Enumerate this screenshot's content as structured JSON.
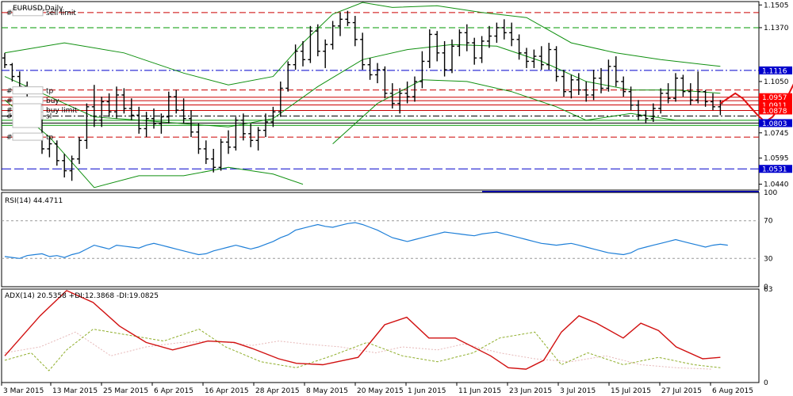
{
  "chart_data": [
    {
      "type": "candlestick",
      "title": "EURUSD,Daily",
      "ylim": [
        1.0405,
        1.1525
      ],
      "price_ticks": [
        "1.1505",
        "1.1370",
        "1.1120",
        "1.1050",
        "1.0745",
        "1.0595",
        "1.0440"
      ],
      "date_labels": [
        "3 Mar 2015",
        "13 Mar 2015",
        "25 Mar 2015",
        "6 Apr 2015",
        "16 Apr 2015",
        "28 Apr 2015",
        "8 May 2015",
        "20 May 2015",
        "1 Jun 2015",
        "11 Jun 2015",
        "23 Jun 2015",
        "3 Jul 2015",
        "15 Jul 2015",
        "27 Jul 2015",
        "6 Aug 2015"
      ],
      "level_labels": [
        {
          "value": 1.1116,
          "text": "1.1116",
          "bg": "#0000cc"
        },
        {
          "value": 1.0957,
          "text": "1.0957",
          "bg": "#ff0000"
        },
        {
          "value": 1.0911,
          "text": "1.0911",
          "bg": "#ff0000"
        },
        {
          "value": 1.0878,
          "text": "1.0878",
          "bg": "#ff0000"
        },
        {
          "value": 1.0803,
          "text": "1.0803",
          "bg": "#0000cc"
        },
        {
          "value": 1.0531,
          "text": "1.0531",
          "bg": "#0000cc"
        }
      ],
      "order_labels": [
        {
          "text": "sell limit",
          "value": 1.146
        },
        {
          "text": "tp",
          "value": 1.0995
        },
        {
          "text": "buy",
          "value": 1.0936
        },
        {
          "text": "buy limit",
          "value": 1.088
        },
        {
          "text": "sl",
          "value": 1.0845
        },
        {
          "text": "tp",
          "value": 1.072
        }
      ],
      "candles": [
        [
          1.119,
          1.122,
          1.113,
          1.115
        ],
        [
          1.115,
          1.116,
          1.105,
          1.108
        ],
        [
          1.108,
          1.111,
          1.099,
          1.102
        ],
        [
          1.102,
          1.105,
          1.086,
          1.089
        ],
        [
          1.089,
          1.092,
          1.082,
          1.084
        ],
        [
          1.084,
          1.086,
          1.062,
          1.065
        ],
        [
          1.065,
          1.072,
          1.06,
          1.068
        ],
        [
          1.068,
          1.07,
          1.055,
          1.058
        ],
        [
          1.058,
          1.062,
          1.048,
          1.052
        ],
        [
          1.052,
          1.061,
          1.046,
          1.059
        ],
        [
          1.059,
          1.072,
          1.056,
          1.07
        ],
        [
          1.07,
          1.092,
          1.065,
          1.09
        ],
        [
          1.09,
          1.103,
          1.078,
          1.082
        ],
        [
          1.082,
          1.096,
          1.078,
          1.093
        ],
        [
          1.093,
          1.098,
          1.084,
          1.087
        ],
        [
          1.087,
          1.102,
          1.083,
          1.097
        ],
        [
          1.097,
          1.101,
          1.086,
          1.089
        ],
        [
          1.089,
          1.095,
          1.082,
          1.085
        ],
        [
          1.085,
          1.09,
          1.074,
          1.077
        ],
        [
          1.077,
          1.087,
          1.072,
          1.083
        ],
        [
          1.083,
          1.089,
          1.077,
          1.08
        ],
        [
          1.08,
          1.086,
          1.074,
          1.084
        ],
        [
          1.084,
          1.099,
          1.08,
          1.096
        ],
        [
          1.096,
          1.1,
          1.086,
          1.088
        ],
        [
          1.088,
          1.095,
          1.08,
          1.083
        ],
        [
          1.083,
          1.088,
          1.072,
          1.075
        ],
        [
          1.075,
          1.08,
          1.062,
          1.065
        ],
        [
          1.065,
          1.07,
          1.056,
          1.059
        ],
        [
          1.059,
          1.065,
          1.051,
          1.054
        ],
        [
          1.054,
          1.071,
          1.052,
          1.069
        ],
        [
          1.069,
          1.076,
          1.062,
          1.066
        ],
        [
          1.066,
          1.084,
          1.064,
          1.082
        ],
        [
          1.082,
          1.086,
          1.07,
          1.074
        ],
        [
          1.074,
          1.08,
          1.066,
          1.07
        ],
        [
          1.07,
          1.078,
          1.064,
          1.076
        ],
        [
          1.076,
          1.086,
          1.072,
          1.081
        ],
        [
          1.081,
          1.09,
          1.078,
          1.087
        ],
        [
          1.087,
          1.105,
          1.084,
          1.101
        ],
        [
          1.101,
          1.117,
          1.099,
          1.115
        ],
        [
          1.115,
          1.127,
          1.112,
          1.123
        ],
        [
          1.123,
          1.129,
          1.114,
          1.118
        ],
        [
          1.118,
          1.138,
          1.116,
          1.135
        ],
        [
          1.135,
          1.139,
          1.12,
          1.123
        ],
        [
          1.123,
          1.13,
          1.113,
          1.127
        ],
        [
          1.127,
          1.141,
          1.124,
          1.138
        ],
        [
          1.138,
          1.146,
          1.132,
          1.142
        ],
        [
          1.142,
          1.147,
          1.138,
          1.14
        ],
        [
          1.14,
          1.144,
          1.126,
          1.13
        ],
        [
          1.13,
          1.134,
          1.112,
          1.115
        ],
        [
          1.115,
          1.119,
          1.106,
          1.109
        ],
        [
          1.109,
          1.116,
          1.104,
          1.112
        ],
        [
          1.112,
          1.114,
          1.095,
          1.098
        ],
        [
          1.098,
          1.104,
          1.089,
          1.092
        ],
        [
          1.092,
          1.101,
          1.086,
          1.098
        ],
        [
          1.098,
          1.105,
          1.092,
          1.096
        ],
        [
          1.096,
          1.108,
          1.093,
          1.105
        ],
        [
          1.105,
          1.123,
          1.101,
          1.117
        ],
        [
          1.117,
          1.136,
          1.113,
          1.133
        ],
        [
          1.133,
          1.135,
          1.117,
          1.122
        ],
        [
          1.122,
          1.129,
          1.108,
          1.112
        ],
        [
          1.112,
          1.13,
          1.11,
          1.126
        ],
        [
          1.126,
          1.136,
          1.12,
          1.134
        ],
        [
          1.134,
          1.139,
          1.123,
          1.128
        ],
        [
          1.128,
          1.131,
          1.115,
          1.119
        ],
        [
          1.119,
          1.132,
          1.116,
          1.129
        ],
        [
          1.129,
          1.138,
          1.125,
          1.132
        ],
        [
          1.132,
          1.14,
          1.128,
          1.137
        ],
        [
          1.137,
          1.142,
          1.13,
          1.134
        ],
        [
          1.134,
          1.14,
          1.126,
          1.13
        ],
        [
          1.13,
          1.133,
          1.118,
          1.122
        ],
        [
          1.122,
          1.125,
          1.113,
          1.117
        ],
        [
          1.117,
          1.124,
          1.113,
          1.12
        ],
        [
          1.12,
          1.126,
          1.112,
          1.115
        ],
        [
          1.115,
          1.128,
          1.112,
          1.124
        ],
        [
          1.124,
          1.126,
          1.105,
          1.108
        ],
        [
          1.108,
          1.112,
          1.096,
          1.099
        ],
        [
          1.099,
          1.109,
          1.095,
          1.106
        ],
        [
          1.106,
          1.11,
          1.097,
          1.1
        ],
        [
          1.1,
          1.105,
          1.093,
          1.097
        ],
        [
          1.097,
          1.112,
          1.094,
          1.107
        ],
        [
          1.107,
          1.113,
          1.098,
          1.101
        ],
        [
          1.101,
          1.118,
          1.099,
          1.114
        ],
        [
          1.114,
          1.12,
          1.102,
          1.105
        ],
        [
          1.105,
          1.108,
          1.096,
          1.099
        ],
        [
          1.099,
          1.102,
          1.088,
          1.091
        ],
        [
          1.091,
          1.094,
          1.082,
          1.085
        ],
        [
          1.085,
          1.088,
          1.08,
          1.083
        ],
        [
          1.083,
          1.092,
          1.081,
          1.089
        ],
        [
          1.089,
          1.101,
          1.086,
          1.098
        ],
        [
          1.098,
          1.104,
          1.092,
          1.095
        ],
        [
          1.095,
          1.11,
          1.093,
          1.107
        ],
        [
          1.107,
          1.109,
          1.096,
          1.099
        ],
        [
          1.099,
          1.104,
          1.091,
          1.094
        ],
        [
          1.094,
          1.111,
          1.092,
          1.099
        ],
        [
          1.099,
          1.1,
          1.09,
          1.093
        ],
        [
          1.093,
          1.098,
          1.088,
          1.09
        ],
        [
          1.09,
          1.094,
          1.085,
          1.092
        ]
      ],
      "bollinger_upper": [
        [
          0,
          1.122
        ],
        [
          8,
          1.128
        ],
        [
          16,
          1.122
        ],
        [
          24,
          1.11
        ],
        [
          30,
          1.103
        ],
        [
          36,
          1.108
        ],
        [
          40,
          1.128
        ],
        [
          44,
          1.145
        ],
        [
          48,
          1.152
        ],
        [
          52,
          1.149
        ],
        [
          58,
          1.15
        ],
        [
          64,
          1.146
        ],
        [
          70,
          1.143
        ],
        [
          76,
          1.128
        ],
        [
          82,
          1.122
        ],
        [
          88,
          1.118
        ],
        [
          96,
          1.114
        ]
      ],
      "bollinger_middle": [
        [
          0,
          1.108
        ],
        [
          6,
          1.096
        ],
        [
          12,
          1.084
        ],
        [
          18,
          1.082
        ],
        [
          24,
          1.08
        ],
        [
          30,
          1.078
        ],
        [
          36,
          1.083
        ],
        [
          42,
          1.102
        ],
        [
          48,
          1.118
        ],
        [
          54,
          1.124
        ],
        [
          60,
          1.127
        ],
        [
          66,
          1.126
        ],
        [
          72,
          1.117
        ],
        [
          78,
          1.105
        ],
        [
          84,
          1.1
        ],
        [
          90,
          1.1
        ],
        [
          96,
          1.098
        ]
      ],
      "bollinger_lower": [
        [
          0,
          1.094
        ],
        [
          6,
          1.072
        ],
        [
          12,
          1.042
        ],
        [
          18,
          1.049
        ],
        [
          24,
          1.049
        ],
        [
          30,
          1.054
        ],
        [
          36,
          1.05
        ],
        [
          40,
          1.044
        ]
      ],
      "bollinger_lower_2": [
        [
          44,
          1.068
        ],
        [
          50,
          1.092
        ],
        [
          56,
          1.106
        ],
        [
          62,
          1.105
        ],
        [
          68,
          1.099
        ],
        [
          74,
          1.09
        ],
        [
          78,
          1.082
        ],
        [
          84,
          1.086
        ],
        [
          90,
          1.082
        ],
        [
          96,
          1.082
        ]
      ],
      "forecast_path": [
        [
          96,
          1.092
        ],
        [
          98,
          1.098
        ],
        [
          99,
          1.095
        ],
        [
          101,
          1.085
        ],
        [
          102,
          1.081
        ],
        [
          103,
          1.084
        ],
        [
          105,
          1.096
        ],
        [
          106,
          1.105
        ],
        [
          107,
          1.108
        ],
        [
          108,
          1.1
        ],
        [
          109,
          1.094
        ]
      ],
      "rsi": {
        "label": "RSI(14) 44.4711",
        "levels": [
          100,
          70,
          30,
          0
        ],
        "ylim": [
          0,
          100
        ],
        "values": [
          32,
          31,
          30,
          33,
          34,
          35,
          32,
          33,
          31,
          34,
          36,
          40,
          44,
          42,
          40,
          44,
          43,
          42,
          41,
          44,
          46,
          44,
          42,
          40,
          38,
          36,
          34,
          35,
          38,
          40,
          42,
          44,
          42,
          40,
          42,
          45,
          48,
          52,
          55,
          60,
          62,
          64,
          66,
          64,
          63,
          65,
          67,
          68,
          66,
          63,
          60,
          56,
          52,
          50,
          48,
          50,
          52,
          54,
          56,
          58,
          57,
          56,
          55,
          54,
          56,
          57,
          58,
          56,
          54,
          52,
          50,
          48,
          46,
          45,
          44,
          45,
          46,
          44,
          42,
          40,
          38,
          36,
          35,
          34,
          36,
          40,
          42,
          44,
          46,
          48,
          50,
          48,
          46,
          44,
          42,
          44,
          45,
          44
        ]
      },
      "adx": {
        "label": "ADX(14) 20.5358 +DI:12.3868 -DI:19.0825",
        "levels": [
          63,
          0
        ],
        "ylim": [
          0,
          63
        ],
        "adx_values": [
          [
            0,
            18
          ],
          [
            8,
            45
          ],
          [
            14,
            62
          ],
          [
            20,
            54
          ],
          [
            26,
            38
          ],
          [
            32,
            27
          ],
          [
            38,
            22
          ],
          [
            46,
            28
          ],
          [
            52,
            27
          ],
          [
            56,
            23
          ],
          [
            62,
            16
          ],
          [
            66,
            13
          ],
          [
            72,
            12
          ],
          [
            80,
            17
          ],
          [
            86,
            39
          ],
          [
            91,
            44
          ],
          [
            96,
            30
          ],
          [
            102,
            30
          ],
          [
            110,
            18
          ],
          [
            114,
            10
          ],
          [
            118,
            9
          ],
          [
            122,
            15
          ],
          [
            126,
            34
          ],
          [
            130,
            45
          ],
          [
            134,
            40
          ],
          [
            140,
            30
          ],
          [
            144,
            40
          ],
          [
            148,
            35
          ],
          [
            152,
            24
          ],
          [
            158,
            16
          ],
          [
            162,
            17
          ]
        ],
        "plus_di": [
          [
            0,
            15
          ],
          [
            6,
            20
          ],
          [
            10,
            8
          ],
          [
            14,
            22
          ],
          [
            20,
            36
          ],
          [
            28,
            32
          ],
          [
            36,
            28
          ],
          [
            44,
            36
          ],
          [
            50,
            24
          ],
          [
            58,
            14
          ],
          [
            66,
            10
          ],
          [
            74,
            18
          ],
          [
            82,
            27
          ],
          [
            90,
            18
          ],
          [
            98,
            14
          ],
          [
            106,
            20
          ],
          [
            112,
            30
          ],
          [
            120,
            34
          ],
          [
            126,
            12
          ],
          [
            132,
            20
          ],
          [
            140,
            12
          ],
          [
            148,
            17
          ],
          [
            156,
            12
          ],
          [
            162,
            10
          ]
        ],
        "minus_di": [
          [
            0,
            20
          ],
          [
            8,
            24
          ],
          [
            16,
            34
          ],
          [
            24,
            18
          ],
          [
            32,
            24
          ],
          [
            40,
            27
          ],
          [
            48,
            28
          ],
          [
            56,
            25
          ],
          [
            62,
            28
          ],
          [
            68,
            26
          ],
          [
            76,
            24
          ],
          [
            84,
            20
          ],
          [
            90,
            24
          ],
          [
            98,
            22
          ],
          [
            104,
            26
          ],
          [
            112,
            20
          ],
          [
            120,
            16
          ],
          [
            128,
            14
          ],
          [
            136,
            18
          ],
          [
            144,
            12
          ],
          [
            152,
            10
          ],
          [
            160,
            9
          ]
        ]
      }
    }
  ]
}
